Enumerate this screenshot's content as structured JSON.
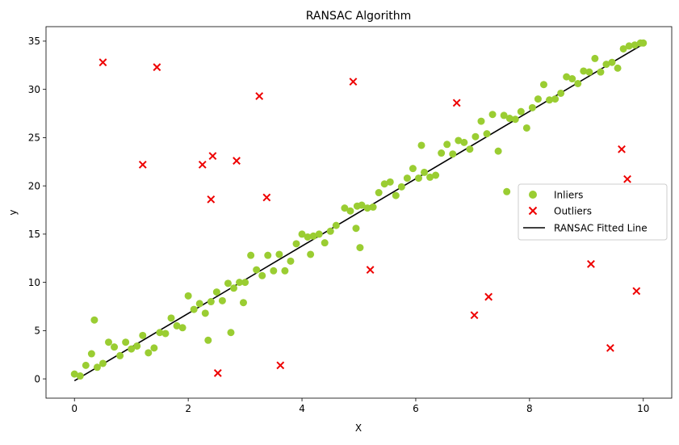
{
  "chart_data": {
    "type": "scatter",
    "title": "RANSAC Algorithm",
    "xlabel": "X",
    "ylabel": "y",
    "xlim": [
      -0.5,
      10.5
    ],
    "ylim": [
      -2,
      36.5
    ],
    "xticks": [
      0,
      2,
      4,
      6,
      8,
      10
    ],
    "yticks": [
      0,
      5,
      10,
      15,
      20,
      25,
      30,
      35
    ],
    "xtick_labels": [
      "0",
      "2",
      "4",
      "6",
      "8",
      "10"
    ],
    "ytick_labels": [
      "0",
      "5",
      "10",
      "15",
      "20",
      "25",
      "30",
      "35"
    ],
    "grid": false,
    "legend_position": "center-right",
    "legend": {
      "inliers": "Inliers",
      "outliers": "Outliers",
      "line": "RANSAC Fitted Line"
    },
    "colors": {
      "inliers": "#9acd32",
      "outliers": "#ee0000",
      "line": "#000000"
    },
    "series": [
      {
        "name": "Inliers",
        "marker": "circle",
        "points": [
          [
            0.0,
            0.5
          ],
          [
            0.1,
            0.3
          ],
          [
            0.2,
            1.4
          ],
          [
            0.3,
            2.6
          ],
          [
            0.35,
            6.1
          ],
          [
            0.4,
            1.2
          ],
          [
            0.5,
            1.6
          ],
          [
            0.6,
            3.8
          ],
          [
            0.7,
            3.3
          ],
          [
            0.8,
            2.4
          ],
          [
            0.9,
            3.8
          ],
          [
            1.0,
            3.1
          ],
          [
            1.1,
            3.4
          ],
          [
            1.2,
            4.5
          ],
          [
            1.3,
            2.7
          ],
          [
            1.4,
            3.2
          ],
          [
            1.5,
            4.8
          ],
          [
            1.6,
            4.7
          ],
          [
            1.7,
            6.3
          ],
          [
            1.8,
            5.5
          ],
          [
            1.9,
            5.3
          ],
          [
            2.0,
            8.6
          ],
          [
            2.1,
            7.2
          ],
          [
            2.2,
            7.8
          ],
          [
            2.3,
            6.8
          ],
          [
            2.35,
            4.0
          ],
          [
            2.4,
            8.0
          ],
          [
            2.5,
            9.0
          ],
          [
            2.6,
            8.1
          ],
          [
            2.7,
            9.9
          ],
          [
            2.75,
            4.8
          ],
          [
            2.8,
            9.4
          ],
          [
            2.9,
            10.0
          ],
          [
            2.97,
            7.9
          ],
          [
            3.0,
            10.0
          ],
          [
            3.1,
            12.8
          ],
          [
            3.2,
            11.3
          ],
          [
            3.3,
            10.7
          ],
          [
            3.4,
            12.8
          ],
          [
            3.5,
            11.2
          ],
          [
            3.6,
            12.9
          ],
          [
            3.7,
            11.2
          ],
          [
            3.8,
            12.2
          ],
          [
            3.9,
            14.0
          ],
          [
            4.0,
            15.0
          ],
          [
            4.1,
            14.7
          ],
          [
            4.15,
            12.9
          ],
          [
            4.2,
            14.8
          ],
          [
            4.3,
            15.0
          ],
          [
            4.4,
            14.1
          ],
          [
            4.5,
            15.3
          ],
          [
            4.6,
            15.9
          ],
          [
            4.75,
            17.7
          ],
          [
            4.85,
            17.4
          ],
          [
            4.95,
            15.6
          ],
          [
            4.97,
            17.9
          ],
          [
            5.05,
            18.0
          ],
          [
            5.02,
            13.6
          ],
          [
            5.15,
            17.7
          ],
          [
            5.25,
            17.8
          ],
          [
            5.35,
            19.3
          ],
          [
            5.45,
            20.2
          ],
          [
            5.55,
            20.4
          ],
          [
            5.65,
            19.0
          ],
          [
            5.75,
            19.9
          ],
          [
            5.85,
            20.8
          ],
          [
            5.95,
            21.8
          ],
          [
            6.05,
            20.8
          ],
          [
            6.1,
            24.2
          ],
          [
            6.15,
            21.4
          ],
          [
            6.25,
            20.9
          ],
          [
            6.35,
            21.1
          ],
          [
            6.45,
            23.4
          ],
          [
            6.55,
            24.3
          ],
          [
            6.65,
            23.3
          ],
          [
            6.75,
            24.7
          ],
          [
            6.85,
            24.5
          ],
          [
            6.95,
            23.8
          ],
          [
            7.05,
            25.1
          ],
          [
            7.15,
            26.7
          ],
          [
            7.25,
            25.4
          ],
          [
            7.35,
            27.4
          ],
          [
            7.45,
            23.6
          ],
          [
            7.55,
            27.3
          ],
          [
            7.6,
            19.4
          ],
          [
            7.65,
            27.0
          ],
          [
            7.75,
            26.9
          ],
          [
            7.85,
            27.7
          ],
          [
            7.95,
            26.0
          ],
          [
            8.05,
            28.1
          ],
          [
            8.15,
            29.0
          ],
          [
            8.25,
            30.5
          ],
          [
            8.35,
            28.9
          ],
          [
            8.45,
            29.0
          ],
          [
            8.55,
            29.6
          ],
          [
            8.65,
            31.3
          ],
          [
            8.75,
            31.1
          ],
          [
            8.85,
            30.6
          ],
          [
            8.95,
            31.9
          ],
          [
            9.05,
            31.8
          ],
          [
            9.15,
            33.2
          ],
          [
            9.25,
            31.8
          ],
          [
            9.35,
            32.6
          ],
          [
            9.45,
            32.8
          ],
          [
            9.55,
            32.2
          ],
          [
            9.65,
            34.2
          ],
          [
            9.75,
            34.5
          ],
          [
            9.85,
            34.6
          ],
          [
            9.95,
            34.8
          ],
          [
            10.0,
            34.8
          ]
        ]
      },
      {
        "name": "Outliers",
        "marker": "x",
        "points": [
          [
            0.5,
            32.8
          ],
          [
            1.2,
            22.2
          ],
          [
            1.45,
            32.3
          ],
          [
            2.25,
            22.2
          ],
          [
            2.4,
            18.6
          ],
          [
            2.43,
            23.1
          ],
          [
            2.52,
            0.6
          ],
          [
            2.85,
            22.6
          ],
          [
            3.25,
            29.3
          ],
          [
            3.38,
            18.8
          ],
          [
            3.62,
            1.4
          ],
          [
            4.9,
            30.8
          ],
          [
            5.2,
            11.3
          ],
          [
            6.72,
            28.6
          ],
          [
            7.03,
            6.6
          ],
          [
            7.28,
            8.5
          ],
          [
            9.08,
            11.9
          ],
          [
            9.42,
            3.2
          ],
          [
            9.62,
            23.8
          ],
          [
            9.72,
            20.7
          ],
          [
            9.88,
            9.1
          ]
        ]
      },
      {
        "name": "RANSAC Fitted Line",
        "marker": "line",
        "points": [
          [
            0,
            -0.2
          ],
          [
            10,
            34.7
          ]
        ]
      }
    ]
  }
}
